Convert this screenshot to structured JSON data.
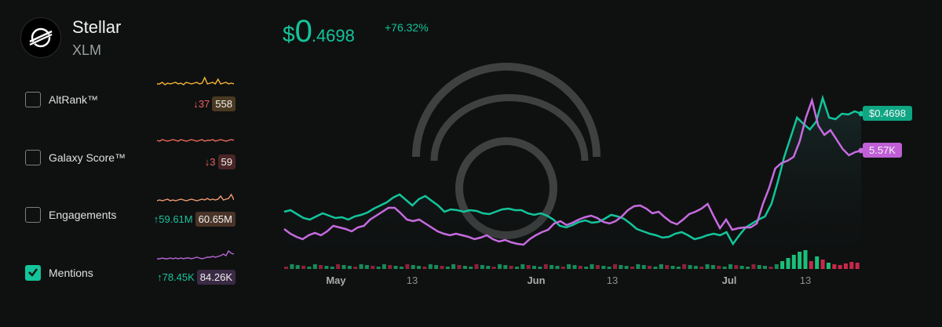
{
  "asset": {
    "name": "Stellar",
    "symbol": "XLM",
    "logo_icon": "stellar-logo-icon"
  },
  "price": {
    "dollar": "$",
    "whole": "0",
    "fraction": ".4698",
    "change": "+76.32%"
  },
  "metrics": [
    {
      "label": "AltRank™",
      "checked": false,
      "change": "↓37",
      "direction": "down",
      "value": "558",
      "badge_color": "#4a3a22",
      "spark_color": "#f5b534"
    },
    {
      "label": "Galaxy Score™",
      "checked": false,
      "change": "↓3",
      "direction": "down",
      "value": "59",
      "badge_color": "#4a2626",
      "spark_color": "#f06a5a"
    },
    {
      "label": "Engagements",
      "checked": false,
      "change": "↑59.61M",
      "direction": "up",
      "value": "60.65M",
      "badge_color": "#4a3428",
      "spark_color": "#f29a72"
    },
    {
      "label": "Mentions",
      "checked": true,
      "change": "↑78.45K",
      "direction": "up",
      "value": "84.26K",
      "badge_color": "#3a2a44",
      "spark_color": "#b866d6"
    }
  ],
  "chart": {
    "price_label": "$0.4698",
    "mentions_label": "5.57K",
    "x_ticks": [
      "May",
      "13",
      "Jun",
      "13",
      "Jul",
      "13"
    ],
    "colors": {
      "price": "#13c59b",
      "mentions": "#c66be0",
      "vol_up": "#1bbf7a",
      "vol_down": "#c8284a"
    }
  }
}
